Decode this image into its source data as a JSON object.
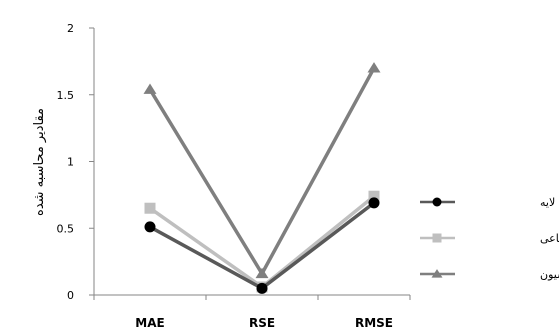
{
  "chart_data": {
    "type": "line",
    "title": "",
    "xlabel": "",
    "ylabel": "مقادیر محاسبه شده",
    "categories": [
      "MAE",
      "RSE",
      "RMSE"
    ],
    "ylim": [
      0,
      2
    ],
    "yticks": [
      "0",
      "0.5",
      "1",
      "1.5",
      "2"
    ],
    "grid": false,
    "legend_position": "right",
    "series": [
      {
        "name": "پرسپترون چند لایه",
        "values": [
          0.51,
          0.05,
          0.69
        ],
        "color": "#595959",
        "marker_color": "#000000",
        "marker": "circle"
      },
      {
        "name": "توابع پایه شعاعی",
        "values": [
          0.65,
          0.06,
          0.74
        ],
        "color": "#bfbfbf",
        "marker_color": "#bfbfbf",
        "marker": "square"
      },
      {
        "name": "رگرسیون",
        "values": [
          1.54,
          0.16,
          1.7
        ],
        "color": "#7f7f7f",
        "marker_color": "#7f7f7f",
        "marker": "triangle"
      }
    ]
  }
}
